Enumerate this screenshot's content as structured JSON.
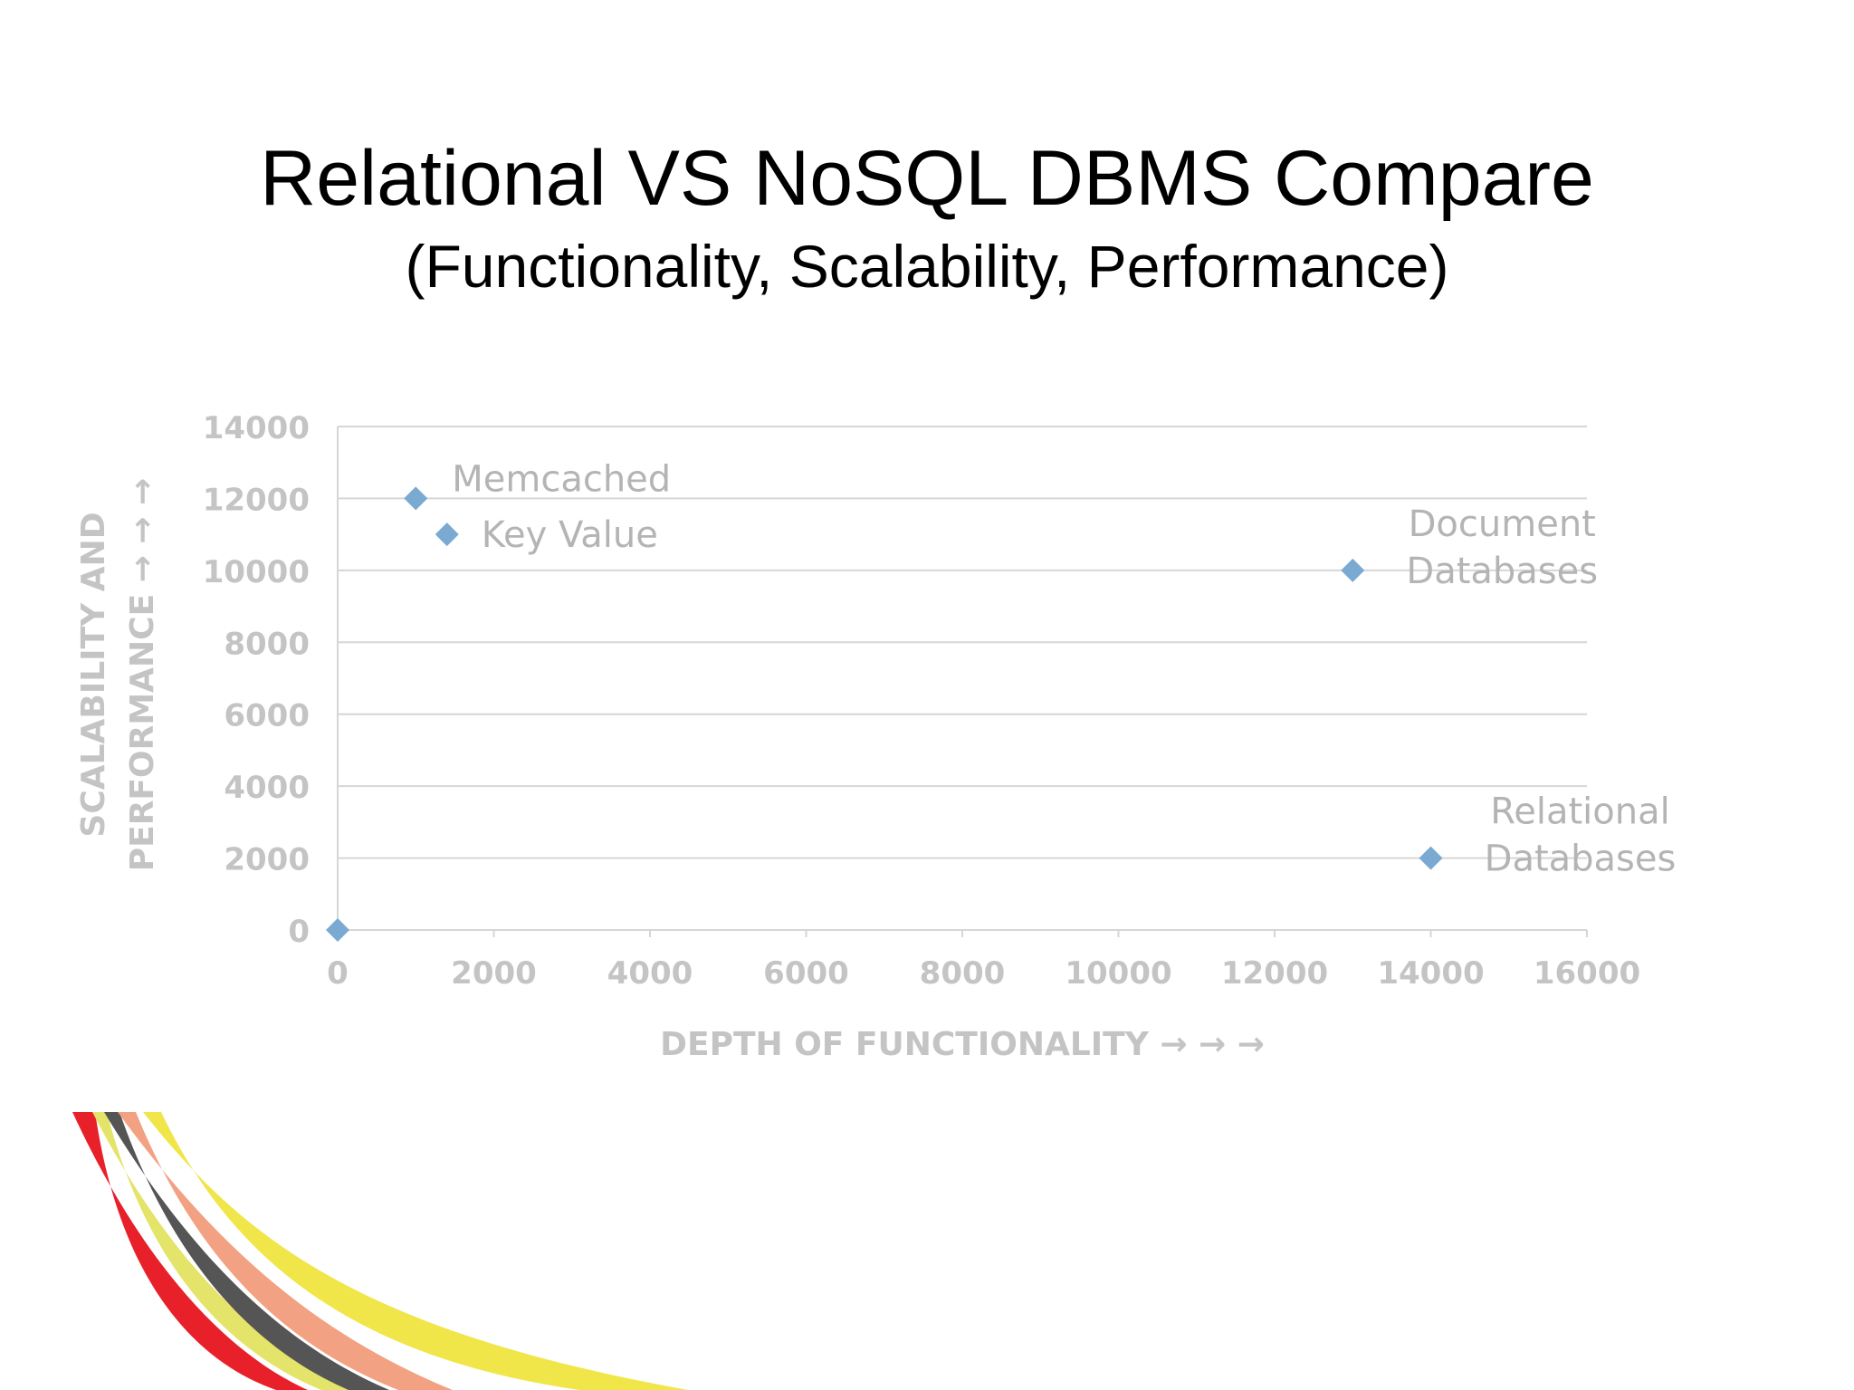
{
  "slide": {
    "title": "Relational VS NoSQL DBMS Compare",
    "subtitle": "(Functionality, Scalability, Performance)"
  },
  "chart_data": {
    "type": "scatter",
    "xlabel": "DEPTH OF FUNCTIONALITY → → →",
    "ylabel_lines": [
      "SCALABILITY AND",
      "PERFORMANCE → → →"
    ],
    "xlim": [
      0,
      16000
    ],
    "ylim": [
      0,
      14000
    ],
    "xticks": [
      0,
      2000,
      4000,
      6000,
      8000,
      10000,
      12000,
      14000,
      16000
    ],
    "yticks": [
      0,
      2000,
      4000,
      6000,
      8000,
      10000,
      12000,
      14000
    ],
    "grid": true,
    "points": [
      {
        "x": 0,
        "y": 0,
        "label": []
      },
      {
        "x": 1000,
        "y": 12000,
        "label": [
          "Memcached"
        ],
        "anchor": "right-above"
      },
      {
        "x": 1400,
        "y": 11000,
        "label": [
          "Key Value"
        ],
        "anchor": "right"
      },
      {
        "x": 13000,
        "y": 10000,
        "label": [
          "Document",
          "Databases"
        ],
        "anchor": "right-above-stacked"
      },
      {
        "x": 14000,
        "y": 2000,
        "label": [
          "Relational",
          "Databases"
        ],
        "anchor": "right-above-stacked"
      }
    ],
    "colors": {
      "marker": "#7aa9d2",
      "axis_text": "#c4c4c4",
      "label_text": "#b4b4b4",
      "grid": "#d6d6d6"
    }
  },
  "decoration": {
    "swoosh_colors": [
      "#e8202a",
      "#e4e46a",
      "#555555",
      "#f2a183",
      "#f0e64a"
    ]
  }
}
